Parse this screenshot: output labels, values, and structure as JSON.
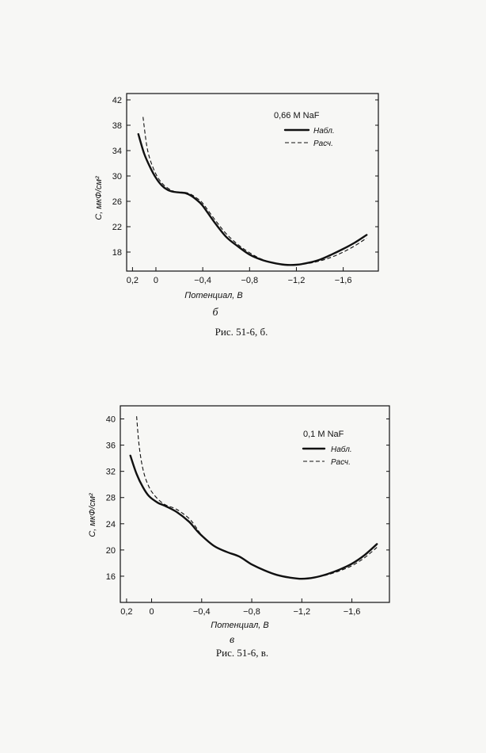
{
  "chart_data": [
    {
      "type": "line",
      "panel_label": "б",
      "caption": "Рис. 51-6, б.",
      "ylabel": "C, мкФ/см²",
      "xlabel": "Потенциал, В",
      "xlim": [
        0.25,
        -1.9
      ],
      "ylim": [
        15,
        43
      ],
      "x_ticks": [
        0.2,
        0,
        -0.4,
        -0.8,
        -1.2,
        -1.6
      ],
      "x_tick_labels": [
        "0,2",
        "0",
        "−0,4",
        "−0,8",
        "−1,2",
        "−1,6"
      ],
      "y_ticks": [
        18,
        22,
        26,
        30,
        34,
        38,
        42
      ],
      "y_tick_labels": [
        "18",
        "22",
        "26",
        "30",
        "34",
        "38",
        "42"
      ],
      "legend": {
        "title": "0,66 M NaF",
        "position": "top-right"
      },
      "series": [
        {
          "name": "Набл.",
          "style": "solid",
          "x": [
            0.15,
            0.1,
            0.05,
            0.0,
            -0.05,
            -0.1,
            -0.15,
            -0.2,
            -0.25,
            -0.3,
            -0.35,
            -0.4,
            -0.5,
            -0.6,
            -0.7,
            -0.8,
            -0.9,
            -1.0,
            -1.1,
            -1.2,
            -1.3,
            -1.4,
            -1.5,
            -1.6,
            -1.7,
            -1.8
          ],
          "y": [
            36.6,
            33.5,
            31.4,
            29.7,
            28.5,
            27.8,
            27.5,
            27.4,
            27.3,
            26.9,
            26.2,
            25.3,
            22.7,
            20.4,
            18.9,
            17.6,
            16.8,
            16.3,
            16.0,
            16.0,
            16.3,
            16.8,
            17.6,
            18.5,
            19.5,
            20.7
          ]
        },
        {
          "name": "Расч.",
          "style": "dashed",
          "x": [
            0.11,
            0.08,
            0.05,
            0.0,
            -0.05,
            -0.1,
            -0.15,
            -0.2,
            -0.25,
            -0.3,
            -0.35,
            -0.4,
            -0.5,
            -0.6,
            -0.7,
            -0.8,
            -0.9,
            -1.0,
            -1.1,
            -1.2,
            -1.3,
            -1.4,
            -1.5,
            -1.6,
            -1.7,
            -1.8
          ],
          "y": [
            39.3,
            35.0,
            32.6,
            30.3,
            28.9,
            28.1,
            27.6,
            27.4,
            27.4,
            27.1,
            26.5,
            25.7,
            23.2,
            20.9,
            19.2,
            17.9,
            16.9,
            16.3,
            16.0,
            16.0,
            16.2,
            16.6,
            17.2,
            18.0,
            19.0,
            20.2
          ]
        }
      ]
    },
    {
      "type": "line",
      "panel_label": "в",
      "caption": "Рис. 51-6, в.",
      "ylabel": "C, мкФ/см²",
      "xlabel": "Потенциал, В",
      "xlim": [
        0.25,
        -1.9
      ],
      "ylim": [
        12,
        42
      ],
      "x_ticks": [
        0.2,
        0,
        -0.4,
        -0.8,
        -1.2,
        -1.6
      ],
      "x_tick_labels": [
        "0,2",
        "0",
        "−0,4",
        "−0,8",
        "−1,2",
        "−1,6"
      ],
      "y_ticks": [
        16,
        20,
        24,
        28,
        32,
        36,
        40
      ],
      "y_tick_labels": [
        "16",
        "20",
        "24",
        "28",
        "32",
        "36",
        "40"
      ],
      "legend": {
        "title": "0,1 M NaF",
        "position": "top-right"
      },
      "series": [
        {
          "name": "Набл.",
          "style": "solid",
          "x": [
            0.17,
            0.12,
            0.07,
            0.02,
            -0.05,
            -0.1,
            -0.2,
            -0.3,
            -0.35,
            -0.4,
            -0.5,
            -0.6,
            -0.7,
            -0.8,
            -0.9,
            -1.0,
            -1.1,
            -1.2,
            -1.3,
            -1.4,
            -1.5,
            -1.6,
            -1.7,
            -1.8
          ],
          "y": [
            34.4,
            31.6,
            29.6,
            28.2,
            27.2,
            26.8,
            25.8,
            24.3,
            23.2,
            22.2,
            20.6,
            19.7,
            19.0,
            17.8,
            16.9,
            16.2,
            15.8,
            15.6,
            15.8,
            16.3,
            17.0,
            17.9,
            19.2,
            20.9
          ]
        },
        {
          "name": "Расч.",
          "style": "dashed",
          "x": [
            0.12,
            0.1,
            0.07,
            0.03,
            -0.02,
            -0.1,
            -0.2,
            -0.3,
            -0.35,
            -0.4,
            -0.5,
            -0.6,
            -0.7,
            -0.8,
            -0.9,
            -1.0,
            -1.1,
            -1.2,
            -1.3,
            -1.4,
            -1.5,
            -1.6,
            -1.7,
            -1.8
          ],
          "y": [
            40.4,
            36.0,
            32.4,
            30.0,
            28.4,
            27.0,
            26.2,
            24.8,
            23.6,
            22.3,
            20.6,
            19.7,
            19.0,
            17.8,
            16.9,
            16.2,
            15.8,
            15.6,
            15.8,
            16.2,
            16.8,
            17.6,
            18.8,
            20.4
          ]
        }
      ]
    }
  ]
}
